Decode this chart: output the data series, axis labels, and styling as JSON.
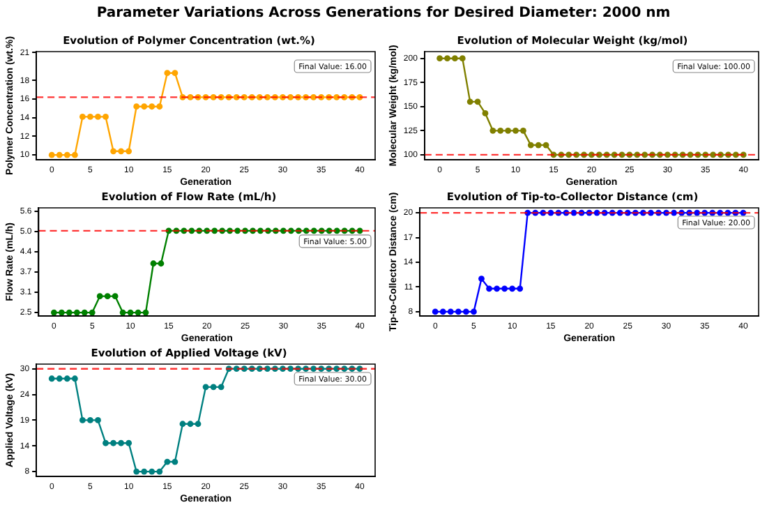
{
  "chart_data": [
    {
      "type": "other",
      "title": "Parameter Variations Across Generations for Desired Diameter: 2000 nm"
    },
    {
      "type": "line",
      "title": "Evolution of Polymer Concentration (wt.%)",
      "xlabel": "Generation",
      "ylabel": "Polymer Concentration (wt.%)",
      "x": [
        0,
        1,
        2,
        3,
        4,
        5,
        6,
        7,
        8,
        9,
        10,
        11,
        12,
        13,
        14,
        15,
        16,
        17,
        18,
        19,
        20,
        21,
        22,
        23,
        24,
        25,
        26,
        27,
        28,
        29,
        30,
        31,
        32,
        33,
        34,
        35,
        36,
        37,
        38,
        39,
        40
      ],
      "series": [
        {
          "color": "#ffa500",
          "values": [
            10,
            10,
            10,
            10,
            14.1,
            14.1,
            14.1,
            14.1,
            10.4,
            10.4,
            10.4,
            15.2,
            15.2,
            15.2,
            15.2,
            18.8,
            18.8,
            16.2,
            16.2,
            16.2,
            16.2,
            16.2,
            16.2,
            16.2,
            16.2,
            16.2,
            16.2,
            16.2,
            16.2,
            16.2,
            16.2,
            16.2,
            16.2,
            16.2,
            16.2,
            16.2,
            16.2,
            16.2,
            16.2,
            16.2,
            16.2
          ]
        }
      ],
      "xlim": [
        -2,
        42
      ],
      "xticks": [
        0,
        5,
        10,
        15,
        20,
        25,
        30,
        35,
        40
      ],
      "ylim": [
        9.5,
        21.1
      ],
      "yticks": [
        10,
        12,
        14,
        16,
        18,
        21
      ],
      "ref_lines": [
        {
          "axis": "y",
          "value": 16.2,
          "color": "#ff0000",
          "line_style": "dashed"
        }
      ],
      "annotations": [
        "Final Value: 16.00"
      ],
      "marker": "circle",
      "line_style": "solid",
      "grid": false,
      "legend": false
    },
    {
      "type": "line",
      "title": "Evolution of Molecular Weight (kg/mol)",
      "xlabel": "Generation",
      "ylabel": "Molecular Weight (kg/mol)",
      "x": [
        0,
        1,
        2,
        3,
        4,
        5,
        6,
        7,
        8,
        9,
        10,
        11,
        12,
        13,
        14,
        15,
        16,
        17,
        18,
        19,
        20,
        21,
        22,
        23,
        24,
        25,
        26,
        27,
        28,
        29,
        30,
        31,
        32,
        33,
        34,
        35,
        36,
        37,
        38,
        39,
        40
      ],
      "series": [
        {
          "color": "#808000",
          "values": [
            200,
            200,
            200,
            200,
            155,
            155,
            143,
            125,
            125,
            125,
            125,
            125,
            110,
            110,
            110,
            100,
            100,
            100,
            100,
            100,
            100,
            100,
            100,
            100,
            100,
            100,
            100,
            100,
            100,
            100,
            100,
            100,
            100,
            100,
            100,
            100,
            100,
            100,
            100,
            100,
            100
          ]
        }
      ],
      "xlim": [
        -2,
        42
      ],
      "xticks": [
        0,
        5,
        10,
        15,
        20,
        25,
        30,
        35,
        40
      ],
      "ylim": [
        95,
        207
      ],
      "yticks": [
        100,
        125,
        150,
        175,
        200
      ],
      "ref_lines": [
        {
          "axis": "y",
          "value": 100,
          "color": "#ff0000",
          "line_style": "dashed"
        }
      ],
      "annotations": [
        "Final Value: 100.00"
      ],
      "marker": "circle",
      "line_style": "solid",
      "grid": false,
      "legend": false
    },
    {
      "type": "line",
      "title": "Evolution of Flow Rate (mL/h)",
      "xlabel": "Generation",
      "ylabel": "Flow Rate (mL/h)",
      "x": [
        0,
        1,
        2,
        3,
        4,
        5,
        6,
        7,
        8,
        9,
        10,
        11,
        12,
        13,
        14,
        15,
        16,
        17,
        18,
        19,
        20,
        21,
        22,
        23,
        24,
        25,
        26,
        27,
        28,
        29,
        30,
        31,
        32,
        33,
        34,
        35,
        36,
        37,
        38,
        39,
        40
      ],
      "series": [
        {
          "color": "#008000",
          "values": [
            2.5,
            2.5,
            2.5,
            2.5,
            2.5,
            2.5,
            3.0,
            3.0,
            3.0,
            2.5,
            2.5,
            2.5,
            2.5,
            4.0,
            4.0,
            5.0,
            5.0,
            5.0,
            5.0,
            5.0,
            5.0,
            5.0,
            5.0,
            5.0,
            5.0,
            5.0,
            5.0,
            5.0,
            5.0,
            5.0,
            5.0,
            5.0,
            5.0,
            5.0,
            5.0,
            5.0,
            5.0,
            5.0,
            5.0,
            5.0,
            5.0
          ]
        }
      ],
      "xlim": [
        -2,
        42
      ],
      "xticks": [
        0,
        5,
        10,
        15,
        20,
        25,
        30,
        35,
        40
      ],
      "ylim": [
        2.4,
        5.7
      ],
      "yticks": [
        {
          "value": 2.5,
          "label": "2.5"
        },
        {
          "value": 3.12,
          "label": "3.1"
        },
        {
          "value": 3.74,
          "label": "3.7"
        },
        {
          "value": 4.36,
          "label": "4.4"
        },
        {
          "value": 4.98,
          "label": "5.0"
        },
        {
          "value": 5.6,
          "label": "5.6"
        }
      ],
      "ref_lines": [
        {
          "axis": "y",
          "value": 5.0,
          "color": "#ff0000",
          "line_style": "dashed"
        }
      ],
      "annotations": [
        "Final Value: 5.00"
      ],
      "marker": "circle",
      "line_style": "solid",
      "grid": false,
      "legend": false
    },
    {
      "type": "line",
      "title": "Evolution of Tip-to-Collector Distance (cm)",
      "xlabel": "Generation",
      "ylabel": "Tip-to-Collector Distance (cm)",
      "x": [
        0,
        1,
        2,
        3,
        4,
        5,
        6,
        7,
        8,
        9,
        10,
        11,
        12,
        13,
        14,
        15,
        16,
        17,
        18,
        19,
        20,
        21,
        22,
        23,
        24,
        25,
        26,
        27,
        28,
        29,
        30,
        31,
        32,
        33,
        34,
        35,
        36,
        37,
        38,
        39,
        40
      ],
      "series": [
        {
          "color": "#0000ff",
          "values": [
            8,
            8,
            8,
            8,
            8,
            8,
            12,
            10.8,
            10.8,
            10.8,
            10.8,
            10.8,
            20,
            20,
            20,
            20,
            20,
            20,
            20,
            20,
            20,
            20,
            20,
            20,
            20,
            20,
            20,
            20,
            20,
            20,
            20,
            20,
            20,
            20,
            20,
            20,
            20,
            20,
            20,
            20,
            20
          ]
        }
      ],
      "xlim": [
        -2,
        42
      ],
      "xticks": [
        0,
        5,
        10,
        15,
        20,
        25,
        30,
        35,
        40
      ],
      "ylim": [
        7.5,
        20.6
      ],
      "yticks": [
        8,
        11,
        14,
        17,
        20
      ],
      "ref_lines": [
        {
          "axis": "y",
          "value": 20,
          "color": "#ff0000",
          "line_style": "dashed"
        }
      ],
      "annotations": [
        "Final Value: 20.00"
      ],
      "marker": "circle",
      "line_style": "solid",
      "grid": false,
      "legend": false
    },
    {
      "type": "line",
      "title": "Evolution of Applied Voltage (kV)",
      "xlabel": "Generation",
      "ylabel": "Applied Voltage (kV)",
      "x": [
        0,
        1,
        2,
        3,
        4,
        5,
        6,
        7,
        8,
        9,
        10,
        11,
        12,
        13,
        14,
        15,
        16,
        17,
        18,
        19,
        20,
        21,
        22,
        23,
        24,
        25,
        26,
        27,
        28,
        29,
        30,
        31,
        32,
        33,
        34,
        35,
        36,
        37,
        38,
        39,
        40
      ],
      "series": [
        {
          "color": "#008080",
          "values": [
            27.9,
            27.9,
            27.9,
            27.9,
            19,
            19,
            19,
            14.1,
            14.1,
            14.1,
            14.1,
            8,
            8,
            8,
            8,
            10.1,
            10.1,
            18.2,
            18.2,
            18.2,
            26.1,
            26.1,
            26.1,
            30,
            30,
            30,
            30,
            30,
            30,
            30,
            30,
            30,
            30,
            30,
            30,
            30,
            30,
            30,
            30,
            30,
            30
          ]
        }
      ],
      "xlim": [
        -2,
        42
      ],
      "xticks": [
        0,
        5,
        10,
        15,
        20,
        25,
        30,
        35,
        40
      ],
      "ylim": [
        7,
        31
      ],
      "yticks": [
        8,
        {
          "value": 13.5,
          "label": "14"
        },
        19,
        {
          "value": 24.5,
          "label": "24"
        },
        30
      ],
      "ref_lines": [
        {
          "axis": "y",
          "value": 30,
          "color": "#ff0000",
          "line_style": "dashed"
        }
      ],
      "annotations": [
        "Final Value: 30.00"
      ],
      "marker": "circle",
      "line_style": "solid",
      "grid": false,
      "legend": false
    }
  ]
}
